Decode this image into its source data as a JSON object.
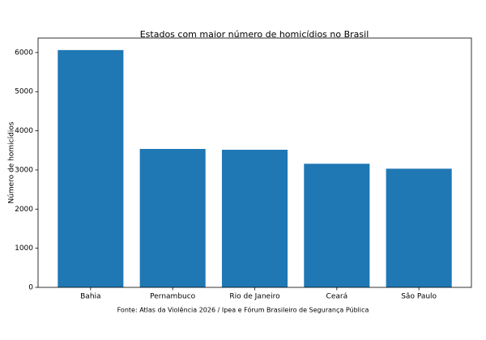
{
  "chart_data": {
    "type": "bar",
    "title": "Estados com maior número de homicídios no Brasil",
    "y_label": "Número de homicídios",
    "footnote": "Fonte: Atlas da Violência 2026 / Ipea e Fórum Brasileiro de Segurança Pública",
    "categories": [
      "Bahia",
      "Pernambuco",
      "Rio de Janeiro",
      "Ceará",
      "São Paulo"
    ],
    "values": [
      6063,
      3537,
      3516,
      3158,
      3032
    ],
    "color": "#1f77b4",
    "ylim": [
      0,
      6370
    ],
    "yticks": [
      0,
      1000,
      2000,
      3000,
      4000,
      5000,
      6000
    ],
    "grid": false
  }
}
